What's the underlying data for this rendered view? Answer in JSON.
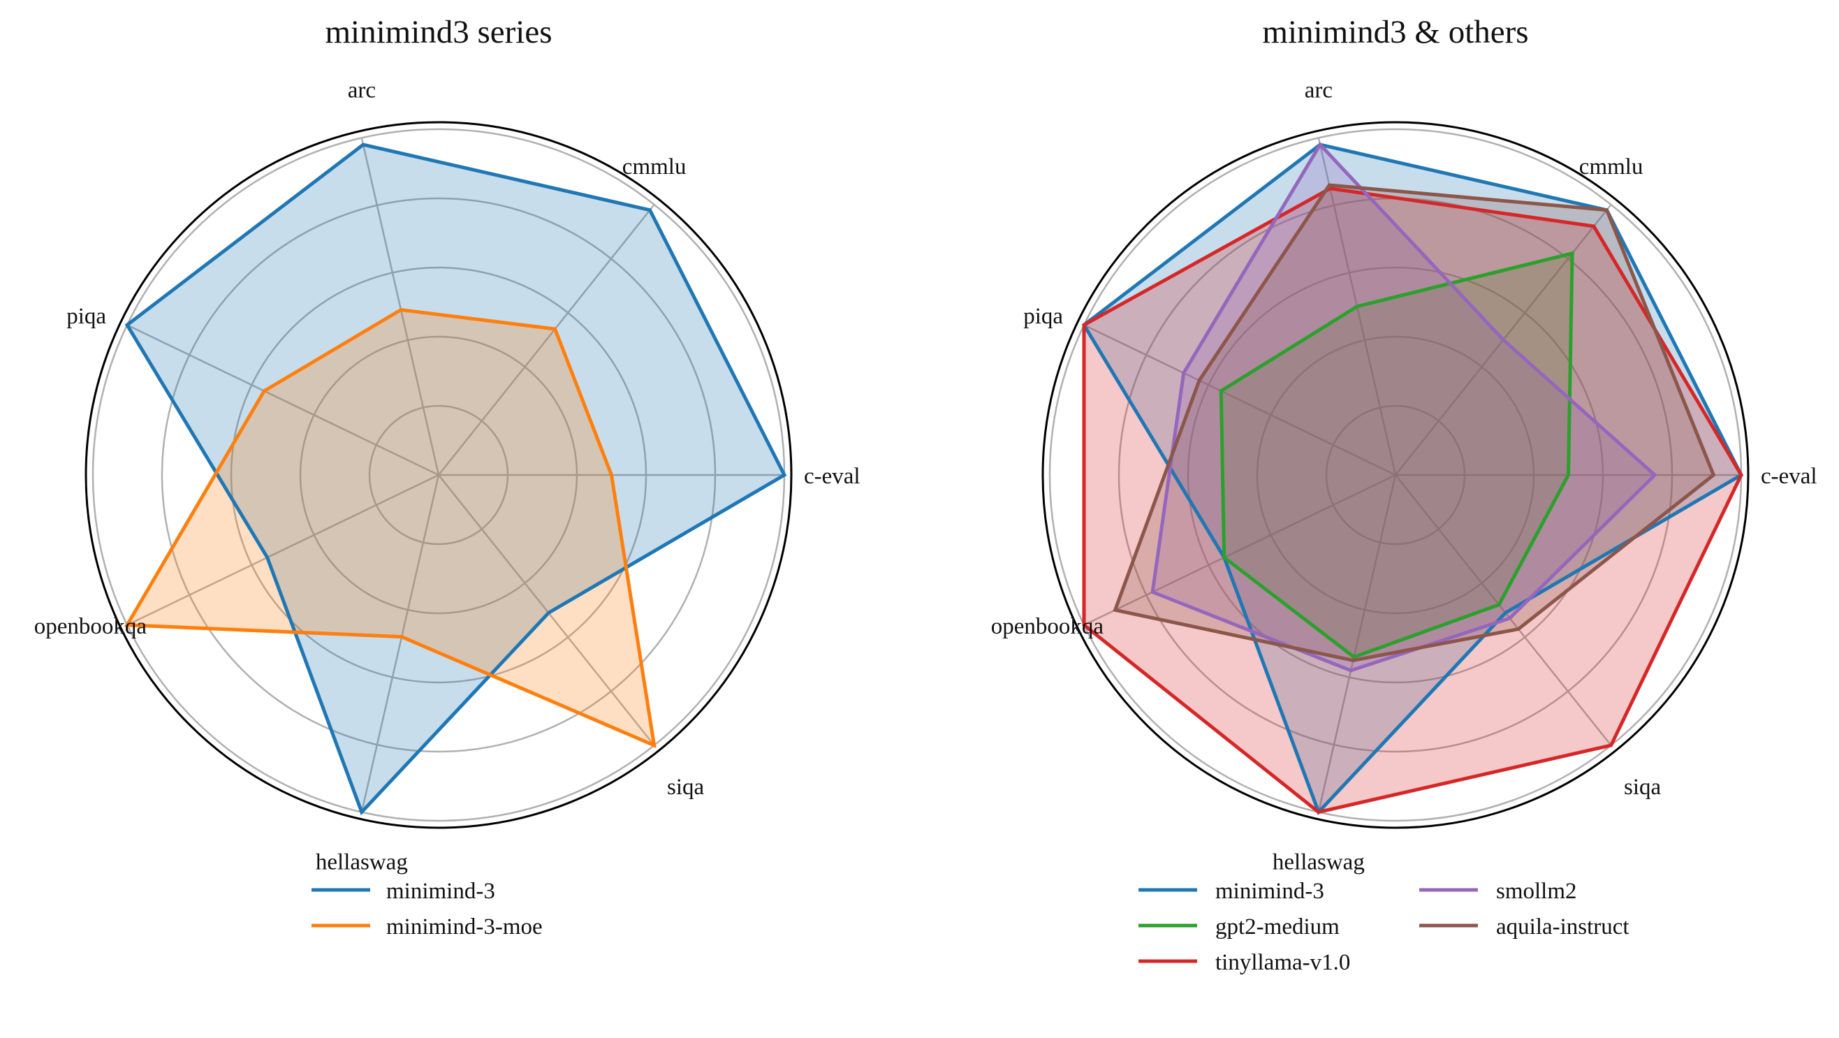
{
  "chart_data": [
    {
      "type": "radar",
      "title": "minimind3 series",
      "axes": [
        "c-eval",
        "cmmlu",
        "arc",
        "piqa",
        "openbookqa",
        "hellaswag",
        "siqa"
      ],
      "rlim": [
        0,
        1
      ],
      "grid": true,
      "legend_placement": "bottom",
      "series": [
        {
          "name": "minimind-3",
          "color": "#1f77b4",
          "values": [
            1.0,
            0.98,
            0.98,
            1.0,
            0.55,
            1.0,
            0.51
          ]
        },
        {
          "name": "minimind-3-moe",
          "color": "#ff7f0e",
          "values": [
            0.5,
            0.54,
            0.49,
            0.56,
            1.0,
            0.48,
            1.0
          ]
        }
      ]
    },
    {
      "type": "radar",
      "title": "minimind3 & others",
      "axes": [
        "c-eval",
        "cmmlu",
        "arc",
        "piqa",
        "openbookqa",
        "hellaswag",
        "siqa"
      ],
      "rlim": [
        0,
        1
      ],
      "grid": true,
      "legend_placement": "bottom",
      "series": [
        {
          "name": "minimind-3",
          "color": "#1f77b4",
          "values": [
            1.0,
            0.98,
            0.98,
            1.0,
            0.55,
            1.0,
            0.51
          ]
        },
        {
          "name": "gpt2-medium",
          "color": "#2ca02c",
          "values": [
            0.5,
            0.82,
            0.5,
            0.56,
            0.55,
            0.54,
            0.48
          ]
        },
        {
          "name": "tinyllama-v1.0",
          "color": "#d62728",
          "values": [
            1.0,
            0.92,
            0.85,
            1.0,
            1.0,
            1.0,
            1.0
          ]
        },
        {
          "name": "smollm2",
          "color": "#9467bd",
          "values": [
            0.75,
            0.5,
            0.98,
            0.68,
            0.78,
            0.58,
            0.53
          ]
        },
        {
          "name": "aquila-instruct",
          "color": "#8c564b",
          "values": [
            0.92,
            0.98,
            0.86,
            0.63,
            0.9,
            0.55,
            0.57
          ]
        }
      ]
    }
  ]
}
